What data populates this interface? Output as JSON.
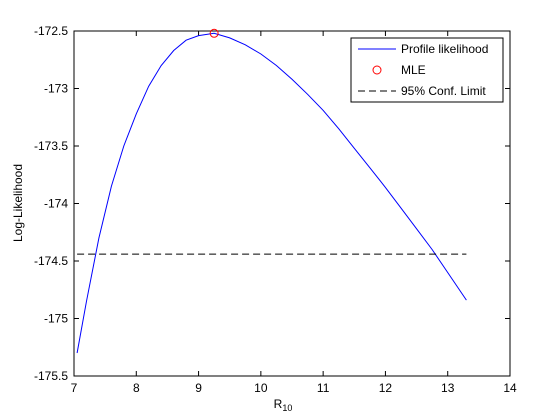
{
  "chart_data": {
    "type": "line",
    "title": "",
    "xlabel": "R",
    "xlabel_subscript": "10",
    "ylabel": "Log-Likelihood",
    "xlim": [
      7,
      14
    ],
    "ylim": [
      -175.5,
      -172.5
    ],
    "x_ticks": [
      7,
      8,
      9,
      10,
      11,
      12,
      13,
      14
    ],
    "x_tick_labels": [
      "7",
      "8",
      "9",
      "10",
      "11",
      "12",
      "13",
      "14"
    ],
    "y_ticks": [
      -172.5,
      -173,
      -173.5,
      -174,
      -174.5,
      -175,
      -175.5
    ],
    "y_tick_labels": [
      "-172.5",
      "-173",
      "-173.5",
      "-174",
      "-174.5",
      "-175",
      "-175.5"
    ],
    "grid": false,
    "legend_position": "top-right",
    "series": [
      {
        "name": "Profile likelihood",
        "color": "#0000ff",
        "style": "solid",
        "x": [
          7.05,
          7.2,
          7.4,
          7.6,
          7.8,
          8.0,
          8.2,
          8.4,
          8.6,
          8.8,
          9.0,
          9.25,
          9.5,
          9.75,
          10.0,
          10.25,
          10.5,
          10.75,
          11.0,
          11.25,
          11.5,
          11.75,
          12.0,
          12.25,
          12.5,
          12.75,
          13.0,
          13.3
        ],
        "y": [
          -175.3,
          -174.85,
          -174.3,
          -173.85,
          -173.5,
          -173.22,
          -172.98,
          -172.8,
          -172.67,
          -172.58,
          -172.54,
          -172.52,
          -172.56,
          -172.62,
          -172.7,
          -172.8,
          -172.92,
          -173.05,
          -173.19,
          -173.35,
          -173.52,
          -173.69,
          -173.86,
          -174.04,
          -174.22,
          -174.4,
          -174.6,
          -174.84
        ]
      },
      {
        "name": "MLE",
        "color": "#ff0000",
        "style": "marker-circle",
        "x": [
          9.25
        ],
        "y": [
          -172.52
        ]
      },
      {
        "name": "95% Conf. Limit",
        "color": "#000000",
        "style": "dashed",
        "x": [
          7.05,
          13.3
        ],
        "y": [
          -174.44,
          -174.44
        ]
      }
    ]
  }
}
